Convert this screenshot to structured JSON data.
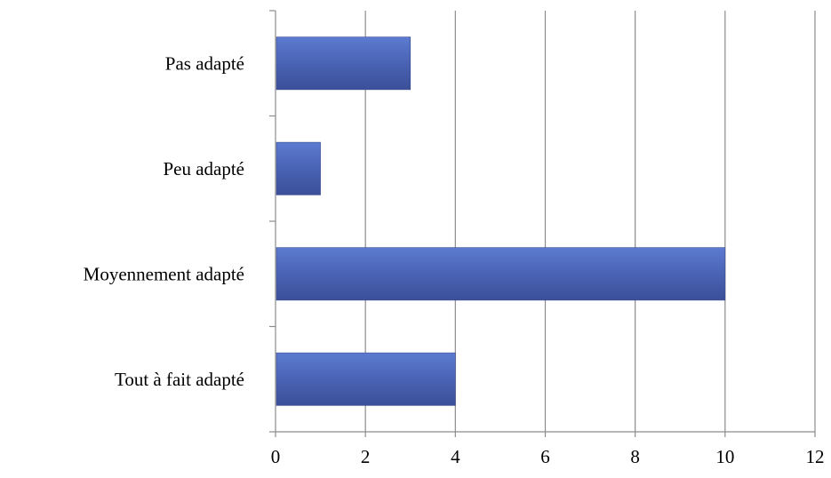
{
  "chart_data": {
    "type": "bar",
    "orientation": "horizontal",
    "categories": [
      "Pas adapté",
      "Peu adapté",
      "Moyennement adapté",
      "Tout à fait adapté"
    ],
    "values": [
      3,
      1,
      10,
      4
    ],
    "xlim": [
      0,
      12
    ],
    "x_ticks": [
      "0",
      "2",
      "4",
      "6",
      "8",
      "10",
      "12"
    ],
    "grid": true,
    "legend": "none",
    "bar_color": "#4a63b4",
    "title": "",
    "xlabel": "",
    "ylabel": ""
  }
}
